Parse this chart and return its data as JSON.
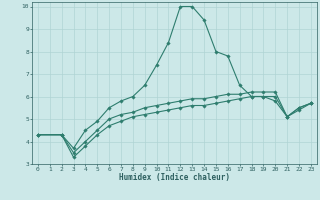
{
  "xlabel": "Humidex (Indice chaleur)",
  "ylabel": "",
  "xlim": [
    -0.5,
    23.5
  ],
  "ylim": [
    3,
    10.2
  ],
  "xticks": [
    0,
    1,
    2,
    3,
    4,
    5,
    6,
    7,
    8,
    9,
    10,
    11,
    12,
    13,
    14,
    15,
    16,
    17,
    18,
    19,
    20,
    21,
    22,
    23
  ],
  "yticks": [
    3,
    4,
    5,
    6,
    7,
    8,
    9,
    10
  ],
  "bg_color": "#cce8e8",
  "grid_color": "#b0d4d4",
  "line_color": "#2e7d6e",
  "series": [
    {
      "x": [
        0,
        2,
        3,
        4,
        5,
        6,
        7,
        8,
        9,
        10,
        11,
        12,
        13,
        14,
        15,
        16,
        17,
        18,
        19,
        20,
        21,
        22,
        23
      ],
      "y": [
        4.3,
        4.3,
        3.7,
        4.5,
        4.9,
        5.5,
        5.8,
        6.0,
        6.5,
        7.4,
        8.4,
        10.0,
        10.0,
        9.4,
        8.0,
        7.8,
        6.5,
        6.0,
        6.0,
        5.8,
        5.1,
        5.5,
        5.7
      ]
    },
    {
      "x": [
        0,
        2,
        3,
        4,
        5,
        6,
        7,
        8,
        9,
        10,
        11,
        12,
        13,
        14,
        15,
        16,
        17,
        18,
        19,
        20,
        21,
        22,
        23
      ],
      "y": [
        4.3,
        4.3,
        3.3,
        3.8,
        4.3,
        4.7,
        4.9,
        5.1,
        5.2,
        5.3,
        5.4,
        5.5,
        5.6,
        5.6,
        5.7,
        5.8,
        5.9,
        6.0,
        6.0,
        6.0,
        5.1,
        5.4,
        5.7
      ]
    },
    {
      "x": [
        0,
        2,
        3,
        4,
        5,
        6,
        7,
        8,
        9,
        10,
        11,
        12,
        13,
        14,
        15,
        16,
        17,
        18,
        19,
        20,
        21,
        22,
        23
      ],
      "y": [
        4.3,
        4.3,
        3.5,
        4.0,
        4.5,
        5.0,
        5.2,
        5.3,
        5.5,
        5.6,
        5.7,
        5.8,
        5.9,
        5.9,
        6.0,
        6.1,
        6.1,
        6.2,
        6.2,
        6.2,
        5.1,
        5.5,
        5.7
      ]
    }
  ]
}
